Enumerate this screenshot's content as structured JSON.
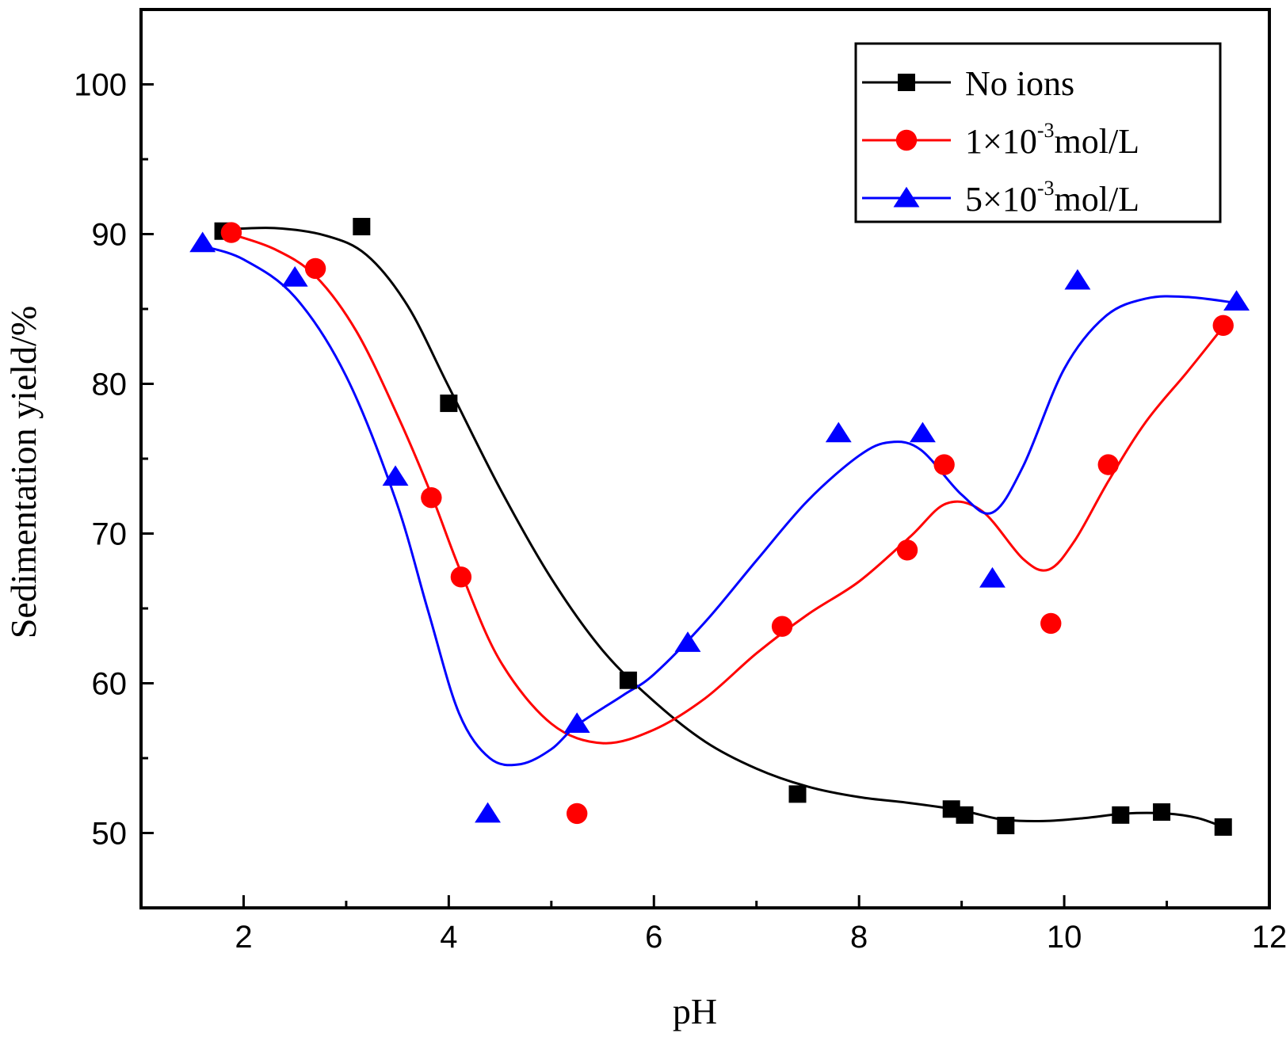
{
  "chart_data": {
    "type": "scatter",
    "title": "",
    "xlabel": "pH",
    "ylabel": "Sedimentation yield/%",
    "xlim": [
      1,
      12
    ],
    "ylim": [
      45,
      105
    ],
    "xticks": [
      2,
      4,
      6,
      8,
      10,
      12
    ],
    "yticks": [
      50,
      60,
      70,
      80,
      90,
      100
    ],
    "x_tick_labels": [
      "2",
      "4",
      "6",
      "8",
      "10",
      "12"
    ],
    "y_tick_labels": [
      "50",
      "60",
      "70",
      "80",
      "90",
      "100"
    ],
    "legend_position": "top-right",
    "series": [
      {
        "name": "No ions",
        "legend_main": "No ions",
        "legend_sup": "",
        "legend_tail": "",
        "color": "#000000",
        "marker": "square",
        "points": [
          [
            1.8,
            90.2
          ],
          [
            3.15,
            90.5
          ],
          [
            4.0,
            78.7
          ],
          [
            5.75,
            60.2
          ],
          [
            7.4,
            52.6
          ],
          [
            8.9,
            51.6
          ],
          [
            9.03,
            51.2
          ],
          [
            9.43,
            50.5
          ],
          [
            10.55,
            51.2
          ],
          [
            10.95,
            51.4
          ],
          [
            11.55,
            50.4
          ]
        ],
        "curve": [
          [
            1.8,
            90.3
          ],
          [
            2.3,
            90.4
          ],
          [
            2.8,
            89.9
          ],
          [
            3.2,
            88.6
          ],
          [
            3.6,
            85.2
          ],
          [
            4.0,
            79.8
          ],
          [
            4.5,
            73.0
          ],
          [
            5.0,
            67.0
          ],
          [
            5.5,
            62.2
          ],
          [
            6.0,
            58.8
          ],
          [
            6.5,
            56.1
          ],
          [
            7.0,
            54.3
          ],
          [
            7.5,
            53.1
          ],
          [
            8.0,
            52.4
          ],
          [
            8.5,
            52.0
          ],
          [
            9.0,
            51.5
          ],
          [
            9.4,
            50.9
          ],
          [
            9.8,
            50.8
          ],
          [
            10.2,
            51.0
          ],
          [
            10.6,
            51.3
          ],
          [
            11.0,
            51.3
          ],
          [
            11.3,
            51.0
          ],
          [
            11.55,
            50.4
          ]
        ]
      },
      {
        "name": "1×10-3mol/L",
        "legend_main": "1×10",
        "legend_sup": "-3",
        "legend_tail": "mol/L",
        "color": "#ff0000",
        "marker": "circle",
        "points": [
          [
            1.88,
            90.1
          ],
          [
            2.7,
            87.7
          ],
          [
            3.83,
            72.4
          ],
          [
            4.12,
            67.1
          ],
          [
            5.25,
            51.3
          ],
          [
            7.25,
            63.8
          ],
          [
            8.47,
            68.9
          ],
          [
            8.83,
            74.6
          ],
          [
            9.87,
            64.0
          ],
          [
            10.43,
            74.6
          ],
          [
            11.55,
            83.9
          ]
        ],
        "curve": [
          [
            1.88,
            90.0
          ],
          [
            2.3,
            89.0
          ],
          [
            2.7,
            87.2
          ],
          [
            3.1,
            83.5
          ],
          [
            3.5,
            77.9
          ],
          [
            3.83,
            72.6
          ],
          [
            4.12,
            67.4
          ],
          [
            4.5,
            61.5
          ],
          [
            5.0,
            57.3
          ],
          [
            5.5,
            56.0
          ],
          [
            6.0,
            56.9
          ],
          [
            6.5,
            59.0
          ],
          [
            7.0,
            62.0
          ],
          [
            7.5,
            64.6
          ],
          [
            8.0,
            66.8
          ],
          [
            8.5,
            69.8
          ],
          [
            8.85,
            72.0
          ],
          [
            9.2,
            71.5
          ],
          [
            9.6,
            68.3
          ],
          [
            9.85,
            67.6
          ],
          [
            10.1,
            69.5
          ],
          [
            10.43,
            73.5
          ],
          [
            10.8,
            77.5
          ],
          [
            11.2,
            80.8
          ],
          [
            11.55,
            83.8
          ]
        ]
      },
      {
        "name": "5×10-3mol/L",
        "legend_main": "5×10",
        "legend_sup": "-3",
        "legend_tail": "mol/L",
        "color": "#0000ff",
        "marker": "triangle",
        "points": [
          [
            1.6,
            89.4
          ],
          [
            2.5,
            87.1
          ],
          [
            3.48,
            73.8
          ],
          [
            4.38,
            51.3
          ],
          [
            5.25,
            57.3
          ],
          [
            6.33,
            62.7
          ],
          [
            7.8,
            76.7
          ],
          [
            8.62,
            76.7
          ],
          [
            9.3,
            67.0
          ],
          [
            10.13,
            86.9
          ],
          [
            11.68,
            85.5
          ]
        ],
        "curve": [
          [
            1.6,
            89.2
          ],
          [
            2.0,
            88.3
          ],
          [
            2.5,
            85.8
          ],
          [
            3.0,
            80.5
          ],
          [
            3.48,
            72.3
          ],
          [
            3.8,
            64.8
          ],
          [
            4.1,
            58.0
          ],
          [
            4.4,
            55.0
          ],
          [
            4.7,
            54.6
          ],
          [
            5.0,
            55.6
          ],
          [
            5.25,
            57.2
          ],
          [
            5.7,
            59.2
          ],
          [
            6.0,
            60.6
          ],
          [
            6.5,
            64.1
          ],
          [
            7.0,
            68.2
          ],
          [
            7.5,
            72.2
          ],
          [
            8.0,
            75.2
          ],
          [
            8.3,
            76.1
          ],
          [
            8.6,
            75.6
          ],
          [
            9.0,
            72.6
          ],
          [
            9.3,
            71.4
          ],
          [
            9.6,
            74.5
          ],
          [
            10.0,
            81.0
          ],
          [
            10.4,
            84.5
          ],
          [
            10.8,
            85.7
          ],
          [
            11.2,
            85.8
          ],
          [
            11.68,
            85.4
          ]
        ]
      }
    ]
  }
}
